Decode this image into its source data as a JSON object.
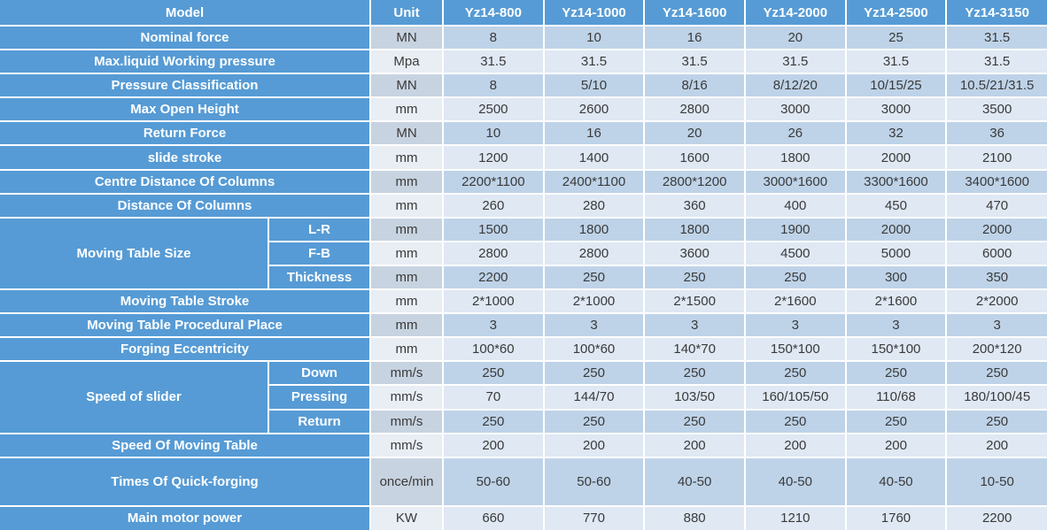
{
  "colors": {
    "header_blue": "#569bd5",
    "row_dark": "#bed3e8",
    "row_light": "#dfe8f3",
    "unit_dark": "#c7d3e0",
    "unit_light": "#e9eef5",
    "grid_white": "#ffffff",
    "data_text": "#3a3a3a"
  },
  "header": {
    "model_label": "Model",
    "unit_label": "Unit",
    "models": [
      "Yz14-800",
      "Yz14-1000",
      "Yz14-1600",
      "Yz14-2000",
      "Yz14-2500",
      "Yz14-3150"
    ]
  },
  "rows": [
    {
      "label": "Nominal force",
      "unit": "MN",
      "values": [
        "8",
        "10",
        "16",
        "20",
        "25",
        "31.5"
      ]
    },
    {
      "label": "Max.liquid Working pressure",
      "unit": "Mpa",
      "values": [
        "31.5",
        "31.5",
        "31.5",
        "31.5",
        "31.5",
        "31.5"
      ]
    },
    {
      "label": "Pressure Classification",
      "unit": "MN",
      "values": [
        "8",
        "5/10",
        "8/16",
        "8/12/20",
        "10/15/25",
        "10.5/21/31.5"
      ]
    },
    {
      "label": "Max Open Height",
      "unit": "mm",
      "values": [
        "2500",
        "2600",
        "2800",
        "3000",
        "3000",
        "3500"
      ]
    },
    {
      "label": "Return Force",
      "unit": "MN",
      "values": [
        "10",
        "16",
        "20",
        "26",
        "32",
        "36"
      ]
    },
    {
      "label": "slide stroke",
      "unit": "mm",
      "values": [
        "1200",
        "1400",
        "1600",
        "1800",
        "2000",
        "2100"
      ]
    },
    {
      "label": "Centre Distance Of Columns",
      "unit": "mm",
      "values": [
        "2200*1100",
        "2400*1100",
        "2800*1200",
        "3000*1600",
        "3300*1600",
        "3400*1600"
      ]
    },
    {
      "label": "Distance Of Columns",
      "unit": "mm",
      "values": [
        "260",
        "280",
        "360",
        "400",
        "450",
        "470"
      ]
    },
    {
      "group": "Moving Table Size",
      "group_span": 3,
      "sub": true,
      "label": "L-R",
      "unit": "mm",
      "values": [
        "1500",
        "1800",
        "1800",
        "1900",
        "2000",
        "2000"
      ]
    },
    {
      "sub": true,
      "label": "F-B",
      "unit": "mm",
      "values": [
        "2800",
        "2800",
        "3600",
        "4500",
        "5000",
        "6000"
      ]
    },
    {
      "sub": true,
      "label": "Thickness",
      "unit": "mm",
      "values": [
        "2200",
        "250",
        "250",
        "250",
        "300",
        "350"
      ]
    },
    {
      "label": "Moving Table Stroke",
      "unit": "mm",
      "values": [
        "2*1000",
        "2*1000",
        "2*1500",
        "2*1600",
        "2*1600",
        "2*2000"
      ]
    },
    {
      "label": "Moving Table Procedural Place",
      "unit": "mm",
      "values": [
        "3",
        "3",
        "3",
        "3",
        "3",
        "3"
      ]
    },
    {
      "label": "Forging Eccentricity",
      "unit": "mm",
      "values": [
        "100*60",
        "100*60",
        "140*70",
        "150*100",
        "150*100",
        "200*120"
      ]
    },
    {
      "group": "Speed of slider",
      "group_span": 3,
      "sub": true,
      "label": "Down",
      "unit": "mm/s",
      "values": [
        "250",
        "250",
        "250",
        "250",
        "250",
        "250"
      ]
    },
    {
      "sub": true,
      "label": "Pressing",
      "unit": "mm/s",
      "values": [
        "70",
        "144/70",
        "103/50",
        "160/105/50",
        "110/68",
        "180/100/45"
      ]
    },
    {
      "sub": true,
      "label": "Return",
      "unit": "mm/s",
      "values": [
        "250",
        "250",
        "250",
        "250",
        "250",
        "250"
      ]
    },
    {
      "label": "Speed Of Moving Table",
      "unit": "mm/s",
      "values": [
        "200",
        "200",
        "200",
        "200",
        "200",
        "200"
      ]
    },
    {
      "label": "Times Of Quick-forging",
      "unit": "once/min",
      "tall": true,
      "values": [
        "50-60",
        "50-60",
        "40-50",
        "40-50",
        "40-50",
        "10-50"
      ]
    },
    {
      "label": "Main motor power",
      "unit": "KW",
      "values": [
        "660",
        "770",
        "880",
        "1210",
        "1760",
        "2200"
      ]
    }
  ]
}
